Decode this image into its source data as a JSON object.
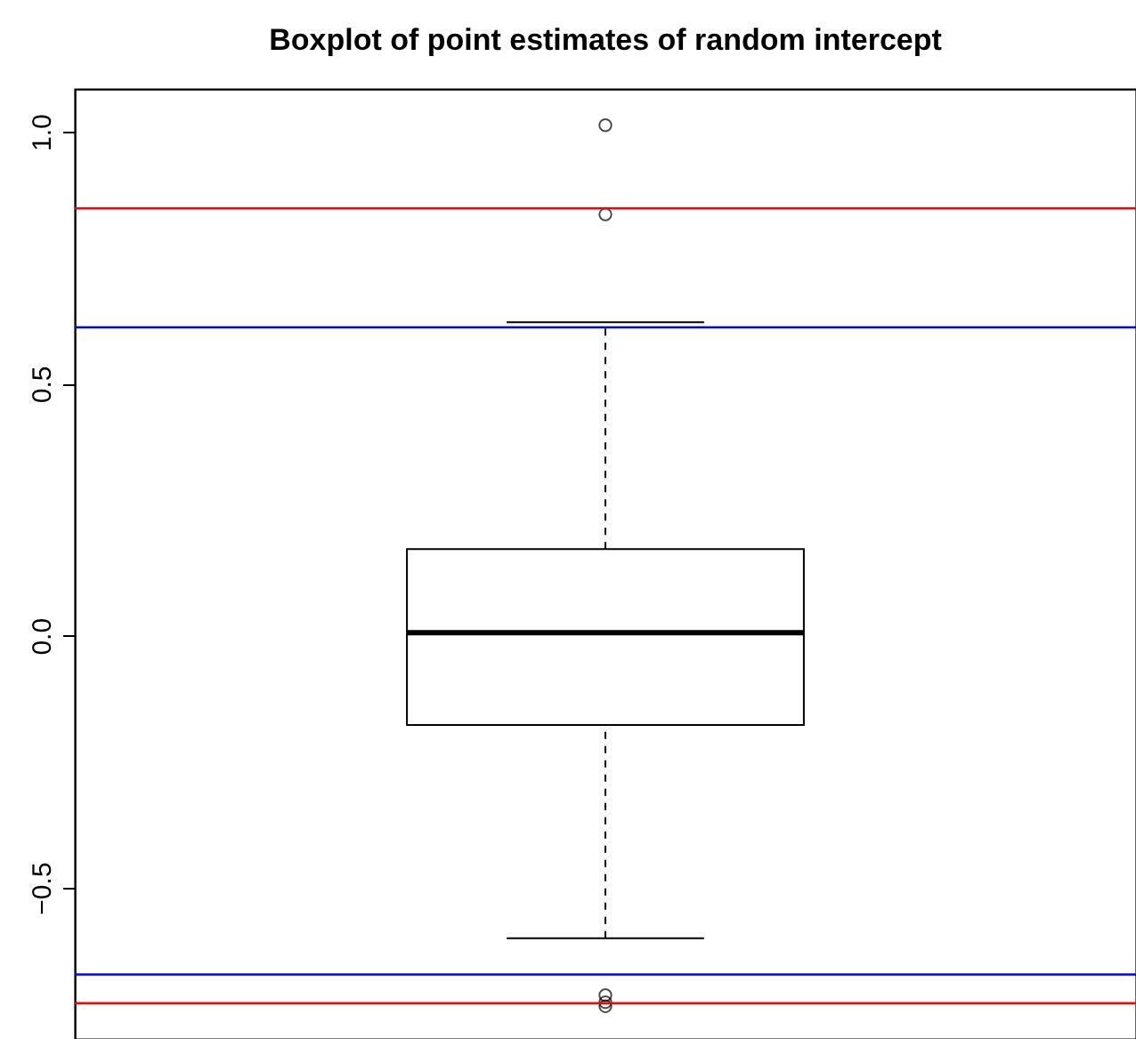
{
  "chart_data": {
    "type": "box",
    "title": "Boxplot of point estimates of random intercept",
    "categories": [
      null
    ],
    "boxes": [
      {
        "low": -0.6,
        "q1": -0.177,
        "median": 0.006,
        "q3": 0.172,
        "high": 0.622,
        "outliers": [
          1.013,
          0.836,
          -0.713,
          -0.727,
          -0.735
        ]
      }
    ],
    "ylim": [
      -0.8,
      1.085
    ],
    "yticks": [
      {
        "value": -0.5,
        "label": "−0.5"
      },
      {
        "value": 0,
        "label": "0.0"
      },
      0.5,
      {
        "value": 1,
        "label": "1.0"
      }
    ],
    "ref_lines": [
      {
        "axis": "y",
        "value": 0.848,
        "color": "#ff0000"
      },
      {
        "axis": "y",
        "value": 0.612,
        "color": "#0000ff"
      },
      {
        "axis": "y",
        "value": -0.672,
        "color": "#0000ff"
      },
      {
        "axis": "y",
        "value": -0.729,
        "color": "#ff0000"
      }
    ],
    "tick_labels": "y"
  }
}
